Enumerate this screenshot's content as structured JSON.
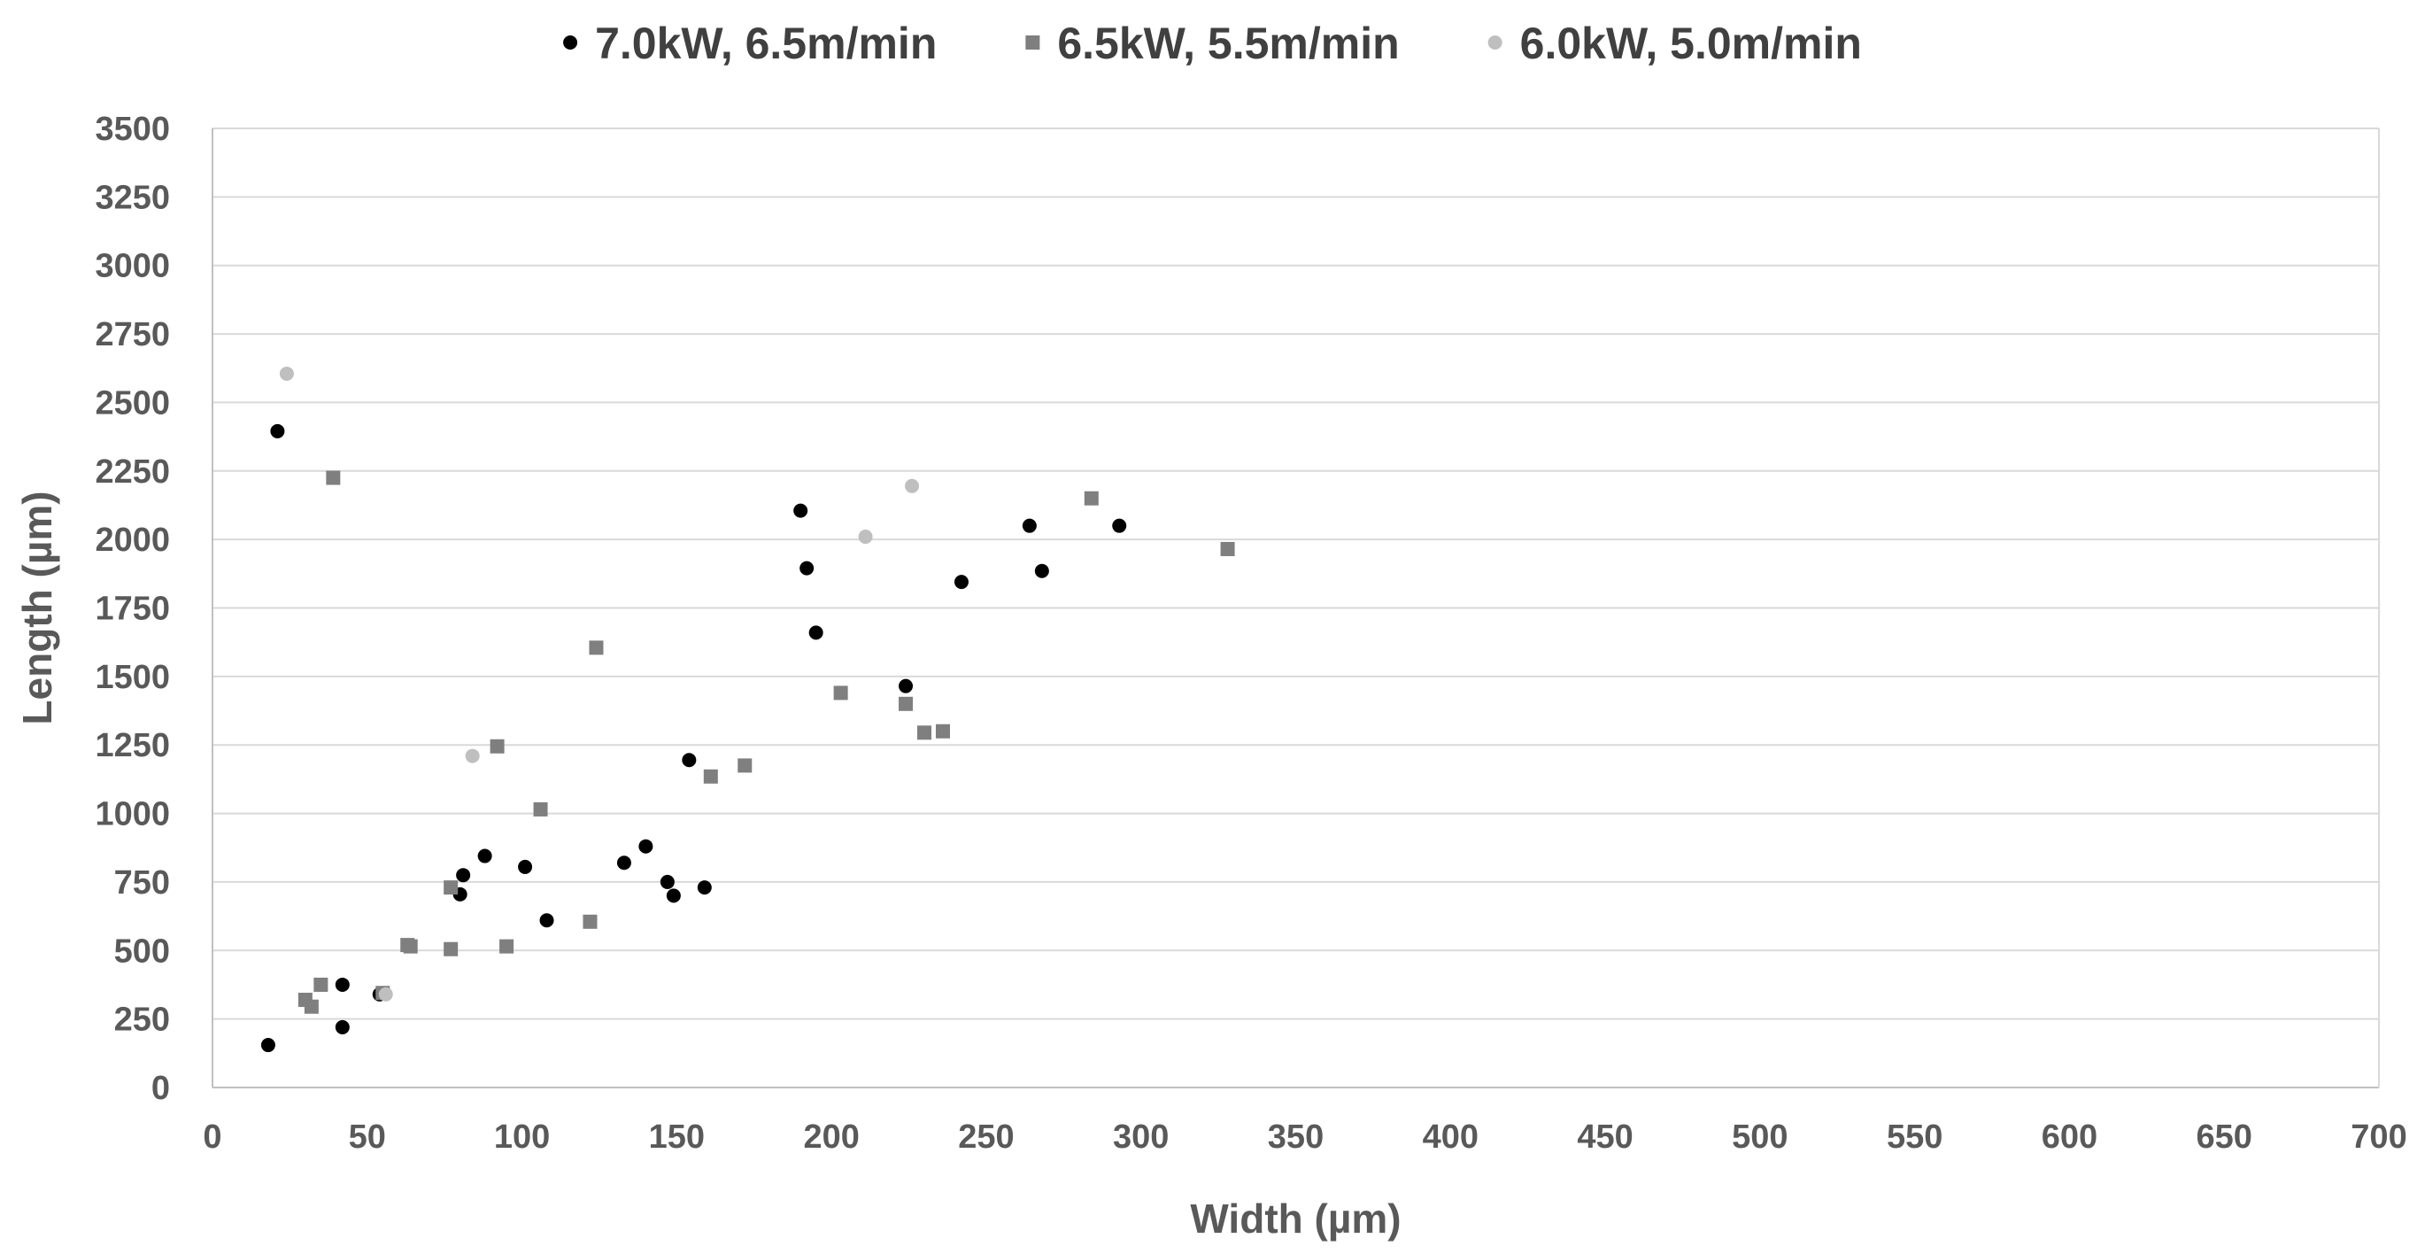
{
  "chart_data": {
    "type": "scatter",
    "title": "",
    "xlabel": "Width (µm)",
    "ylabel": "Length (µm)",
    "xlim": [
      0,
      700
    ],
    "ylim": [
      0,
      3500
    ],
    "xticks": [
      0,
      50,
      100,
      150,
      200,
      250,
      300,
      350,
      400,
      450,
      500,
      550,
      600,
      650,
      700
    ],
    "yticks": [
      0,
      250,
      500,
      750,
      1000,
      1250,
      1500,
      1750,
      2000,
      2250,
      2500,
      2750,
      3000,
      3250,
      3500
    ],
    "grid": "horizontal",
    "legend_position": "top",
    "series": [
      {
        "name": "7.0kW, 6.5m/min",
        "marker": "circle",
        "color": "#000000",
        "points": [
          [
            18,
            155
          ],
          [
            21,
            2395
          ],
          [
            42,
            375
          ],
          [
            42,
            220
          ],
          [
            54,
            340
          ],
          [
            80,
            705
          ],
          [
            81,
            775
          ],
          [
            88,
            845
          ],
          [
            101,
            805
          ],
          [
            108,
            610
          ],
          [
            133,
            820
          ],
          [
            140,
            880
          ],
          [
            147,
            750
          ],
          [
            149,
            700
          ],
          [
            154,
            1195
          ],
          [
            159,
            730
          ],
          [
            190,
            2105
          ],
          [
            192,
            1895
          ],
          [
            195,
            1660
          ],
          [
            224,
            1465
          ],
          [
            242,
            1845
          ],
          [
            264,
            2050
          ],
          [
            268,
            1885
          ],
          [
            293,
            2050
          ]
        ]
      },
      {
        "name": "6.5kW, 5.5m/min",
        "marker": "square",
        "color": "#7f7f7f",
        "points": [
          [
            30,
            320
          ],
          [
            32,
            295
          ],
          [
            35,
            375
          ],
          [
            39,
            2225
          ],
          [
            55,
            345
          ],
          [
            63,
            520
          ],
          [
            64,
            515
          ],
          [
            77,
            730
          ],
          [
            77,
            505
          ],
          [
            92,
            1245
          ],
          [
            95,
            515
          ],
          [
            106,
            1015
          ],
          [
            122,
            605
          ],
          [
            124,
            1605
          ],
          [
            161,
            1135
          ],
          [
            172,
            1175
          ],
          [
            203,
            1440
          ],
          [
            224,
            1400
          ],
          [
            230,
            1295
          ],
          [
            236,
            1300
          ],
          [
            284,
            2150
          ],
          [
            328,
            1965
          ]
        ]
      },
      {
        "name": "6.0kW, 5.0m/min",
        "marker": "circle",
        "color": "#bfbfbf",
        "points": [
          [
            24,
            2605
          ],
          [
            56,
            340
          ],
          [
            84,
            1210
          ],
          [
            211,
            2010
          ],
          [
            226,
            2195
          ]
        ]
      }
    ]
  }
}
